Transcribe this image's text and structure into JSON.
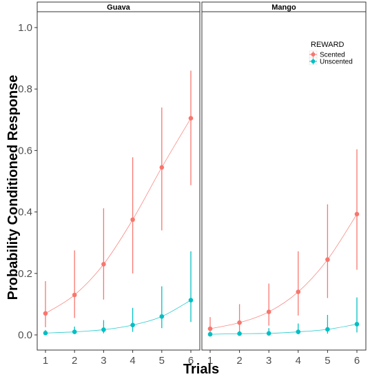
{
  "chart_data": {
    "type": "line",
    "xlabel": "Trials",
    "ylabel": "Probability Conditioned Response",
    "x": [
      1,
      2,
      3,
      4,
      5,
      6
    ],
    "xticks": [
      "1",
      "2",
      "3",
      "4",
      "5",
      "6"
    ],
    "ylim": [
      0,
      1.0
    ],
    "yticks": [
      "0.0",
      "0.2",
      "0.4",
      "0.6",
      "0.8",
      "1.0"
    ],
    "grid": false,
    "legend": {
      "title": "REWARD",
      "position": "top-right inside right panel",
      "entries": [
        "Scented",
        "Unscented"
      ]
    },
    "colors": {
      "Scented": "#F8766D",
      "Unscented": "#00BFC4"
    },
    "panels": [
      {
        "title": "Guava",
        "series": [
          {
            "name": "Scented",
            "values": [
              0.07,
              0.13,
              0.23,
              0.375,
              0.545,
              0.705
            ],
            "lower": [
              0.025,
              0.055,
              0.115,
              0.2,
              0.34,
              0.487
            ],
            "upper": [
              0.175,
              0.275,
              0.412,
              0.578,
              0.74,
              0.86
            ]
          },
          {
            "name": "Unscented",
            "values": [
              0.006,
              0.01,
              0.017,
              0.032,
              0.06,
              0.113
            ],
            "lower": [
              0.002,
              0.003,
              0.005,
              0.01,
              0.022,
              0.042
            ],
            "upper": [
              0.016,
              0.027,
              0.048,
              0.088,
              0.158,
              0.272
            ]
          }
        ]
      },
      {
        "title": "Mango",
        "series": [
          {
            "name": "Scented",
            "values": [
              0.02,
              0.04,
              0.075,
              0.14,
              0.245,
              0.393
            ],
            "lower": [
              0.006,
              0.014,
              0.03,
              0.063,
              0.12,
              0.212
            ],
            "upper": [
              0.058,
              0.1,
              0.167,
              0.272,
              0.425,
              0.604
            ]
          },
          {
            "name": "Unscented",
            "values": [
              0.002,
              0.004,
              0.005,
              0.01,
              0.018,
              0.035
            ],
            "lower": [
              0.0,
              0.001,
              0.001,
              0.002,
              0.004,
              0.008
            ],
            "upper": [
              0.007,
              0.014,
              0.022,
              0.037,
              0.065,
              0.122
            ]
          }
        ]
      }
    ]
  }
}
